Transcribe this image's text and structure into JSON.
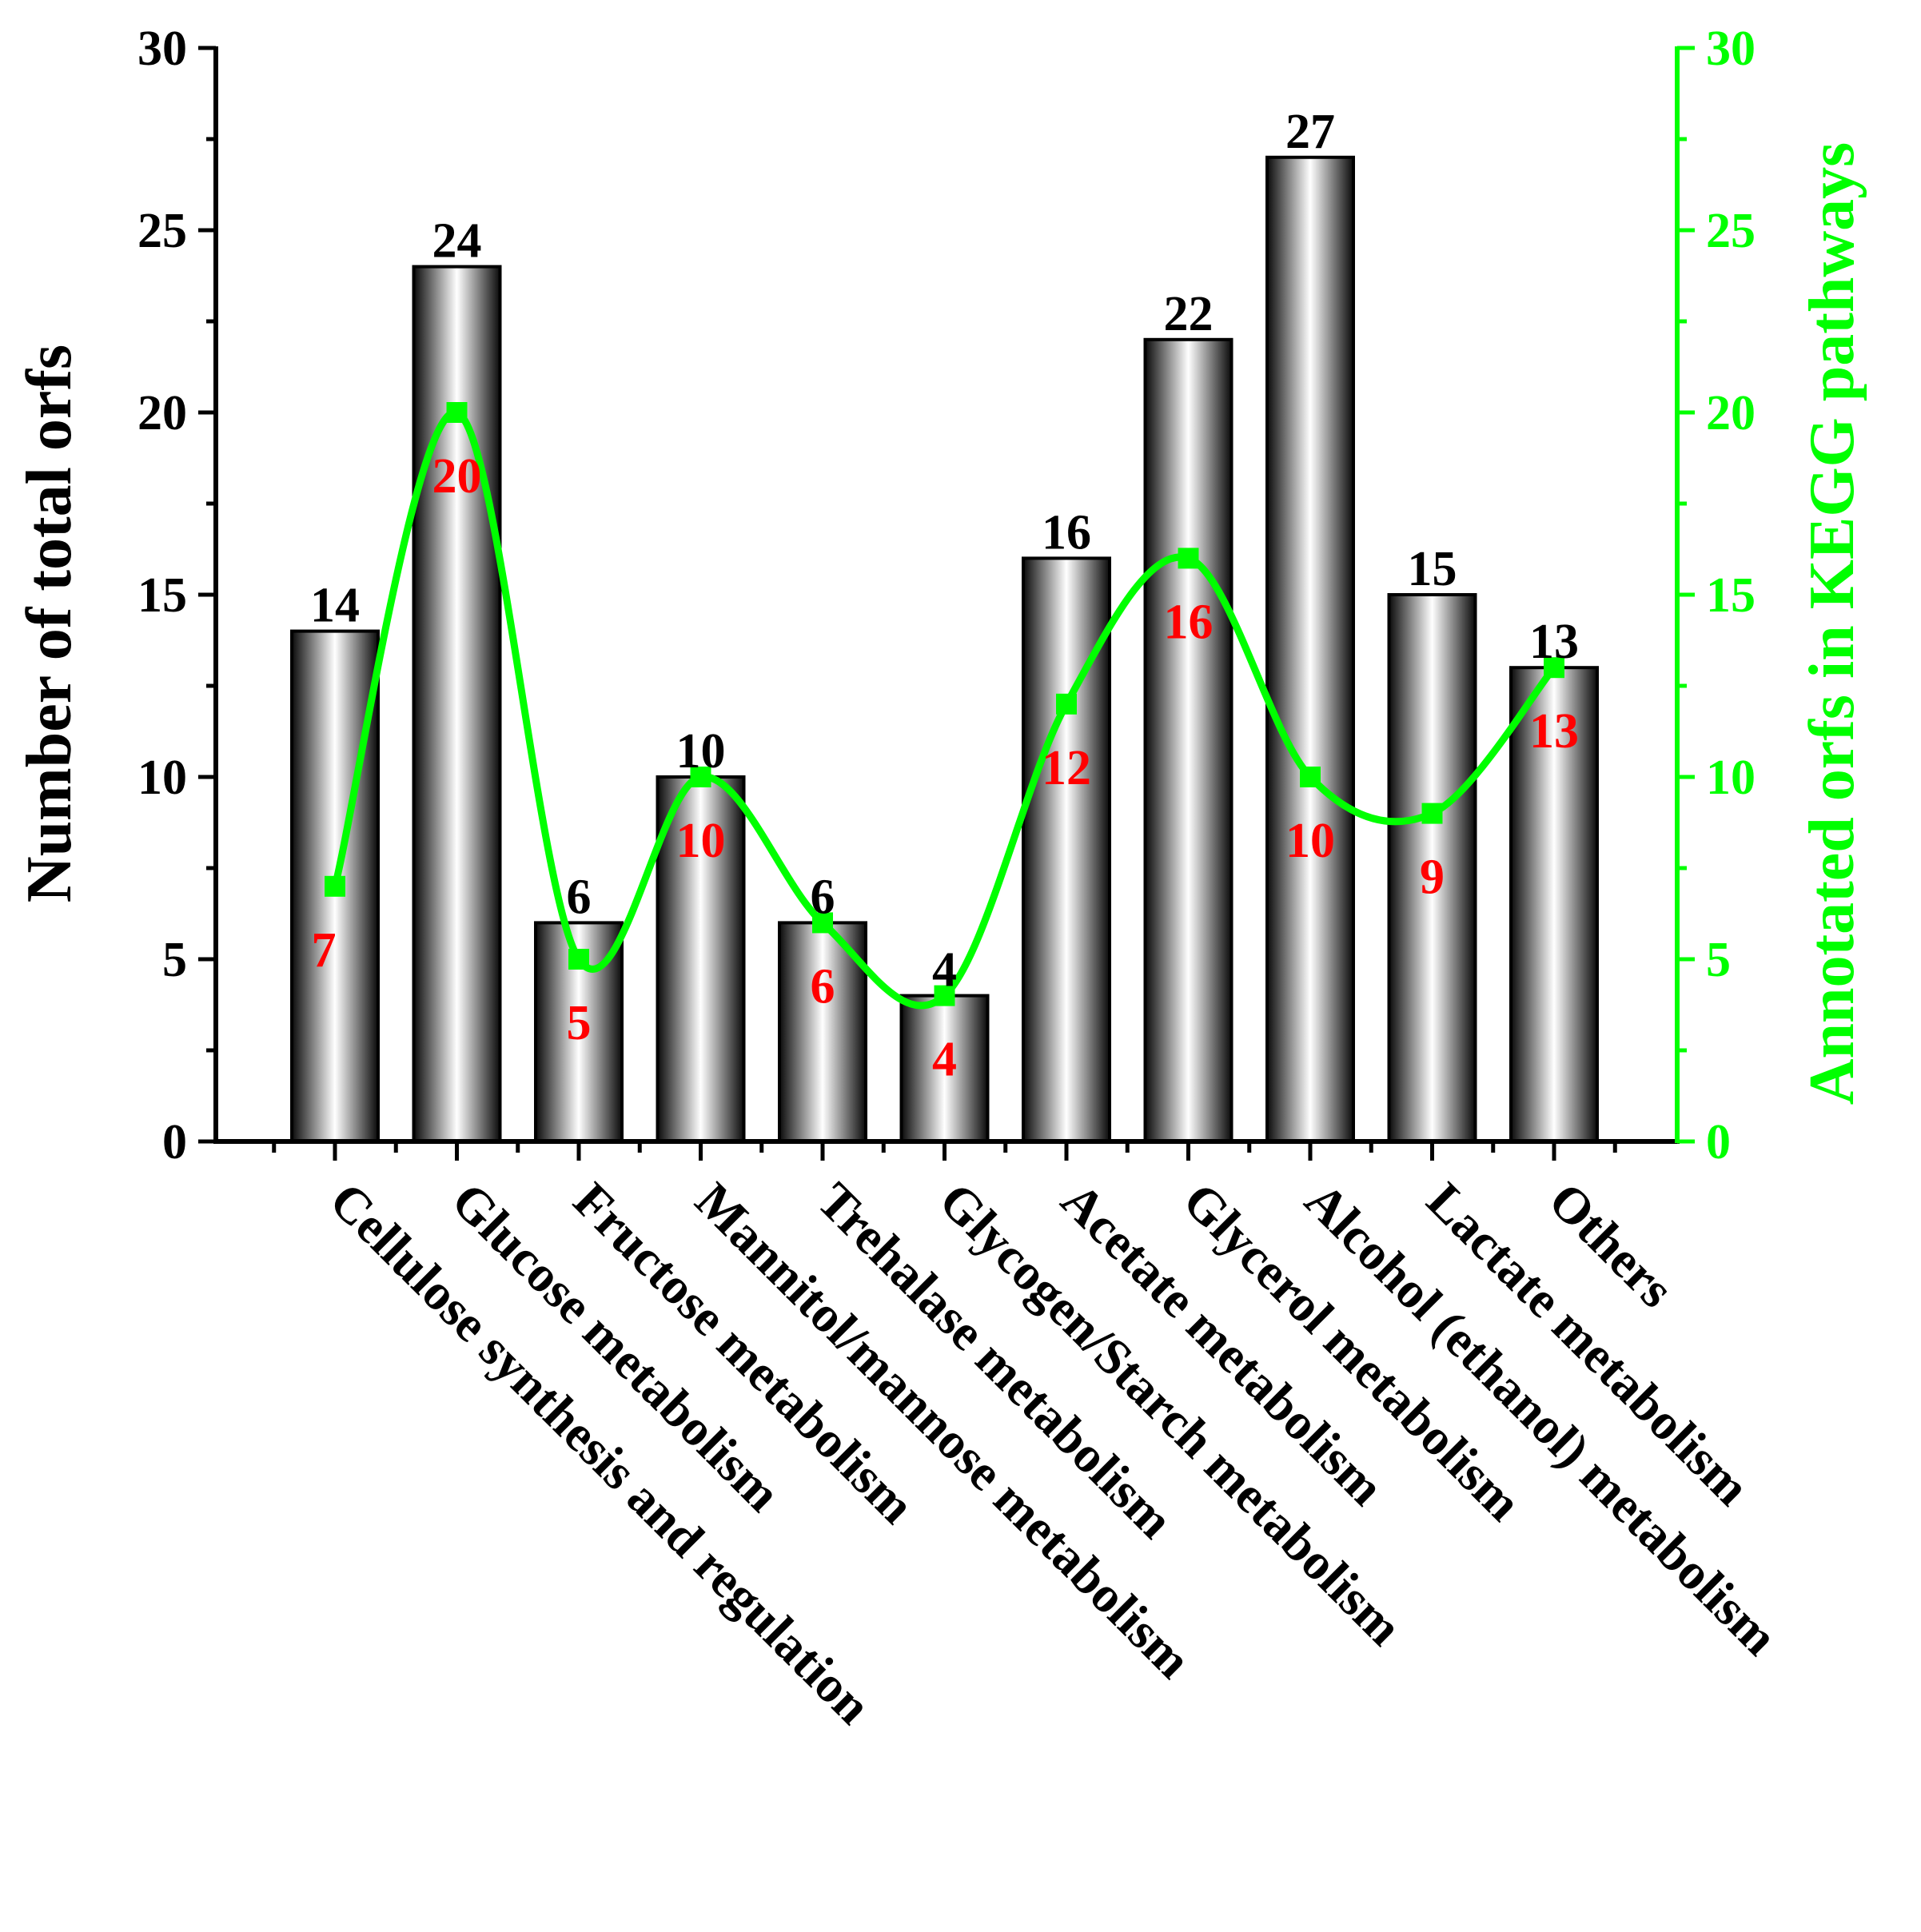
{
  "chart_data": {
    "type": "bar",
    "categories": [
      "Cellulose synthesis and regulation",
      "Glucose metabolism",
      "Fructose metabolism",
      "Mannitol/mannose metabolism",
      "Trehalase metabolism",
      "Glycogen/Starch metabolism",
      "Acetate metabolism",
      "Glycerol metabolism",
      "Alcohol (ethanol) metabolism",
      "Lactate metabolism",
      "Others"
    ],
    "series": [
      {
        "name": "Number of total orfs",
        "type": "bar",
        "axis": "left",
        "values": [
          14,
          24,
          6,
          10,
          6,
          4,
          16,
          22,
          27,
          15,
          13
        ]
      },
      {
        "name": "Annotated orfs in KEGG pathways",
        "type": "line",
        "axis": "right",
        "values": [
          7,
          20,
          5,
          10,
          6,
          4,
          12,
          16,
          10,
          9,
          13
        ]
      }
    ],
    "ylabel": "Number of total orfs",
    "y2label": "Annotated orfs in KEGG pathways",
    "ylim": [
      0,
      30
    ],
    "y2lim": [
      0,
      30
    ],
    "yticks": [
      "0",
      "5",
      "10",
      "15",
      "20",
      "25",
      "30"
    ],
    "colors": {
      "axis_left": "#000000",
      "axis_right": "#00ff00",
      "line": "#00ff00",
      "line_labels": "#ff0000",
      "bar_edge": "#000000"
    }
  }
}
